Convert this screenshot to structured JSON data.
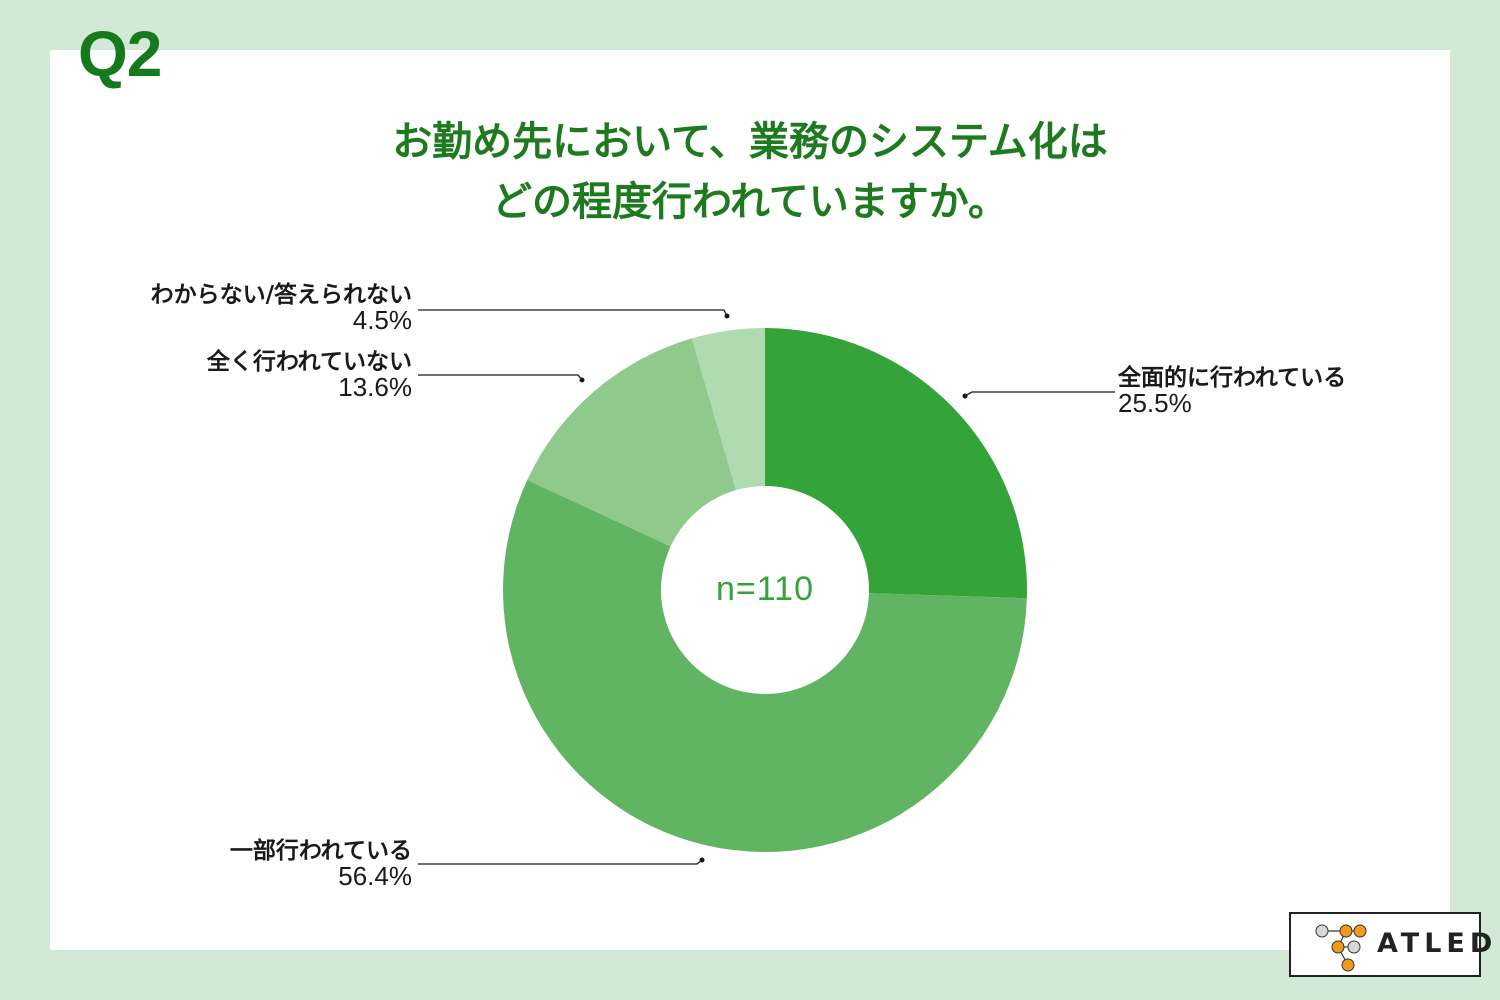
{
  "question_number": "Q2",
  "title_line1": "お勤め先において、業務のシステム化は",
  "title_line2": "どの程度行われていますか。",
  "center_label": "n=110",
  "logo": {
    "text": "ATLED"
  },
  "colors": {
    "background": "#d2ead5",
    "title": "#1e7a1e",
    "slice_full": "#34a33a",
    "slice_partial": "#60b462",
    "slice_none": "#8fc98c",
    "slice_unknown": "#b0dab0"
  },
  "chart_data": {
    "type": "pie",
    "subtype": "donut",
    "title": "お勤め先において、業務のシステム化はどの程度行われていますか。",
    "n": 110,
    "categories": [
      "全面的に行われている",
      "一部行われている",
      "全く行われていない",
      "わからない/答えられない"
    ],
    "values": [
      25.5,
      56.4,
      13.6,
      4.5
    ],
    "unit": "%",
    "start_angle": "12 o'clock, clockwise",
    "legend": "callout labels",
    "center_text": "n=110"
  },
  "labels": [
    {
      "name": "全面的に行われている",
      "value": "25.5%"
    },
    {
      "name": "一部行われている",
      "value": "56.4%"
    },
    {
      "name": "全く行われていない",
      "value": "13.6%"
    },
    {
      "name": "わからない/答えられない",
      "value": "4.5%"
    }
  ]
}
